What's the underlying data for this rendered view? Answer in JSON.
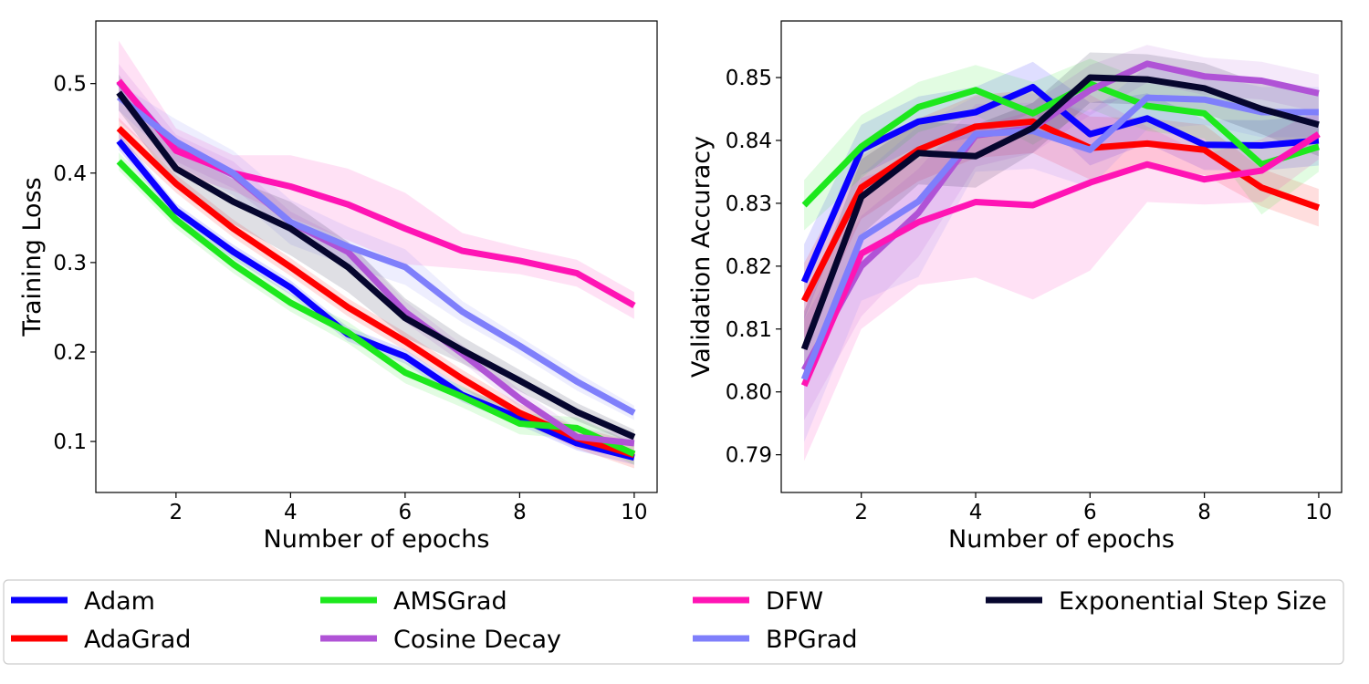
{
  "chart_data": [
    {
      "type": "line",
      "xlabel": "Number of epochs",
      "ylabel": "Training Loss",
      "x": [
        1,
        2,
        3,
        4,
        5,
        6,
        7,
        8,
        9,
        10
      ],
      "xlim": [
        0.6,
        10.4
      ],
      "ylim": [
        0.043,
        0.57
      ],
      "xticks": [
        2,
        4,
        6,
        8,
        10
      ],
      "yticks": [
        0.1,
        0.2,
        0.3,
        0.4,
        0.5
      ],
      "ytick_labels": [
        "0.1",
        "0.2",
        "0.3",
        "0.4",
        "0.5"
      ],
      "grid": false,
      "series": [
        {
          "name": "Adam",
          "values": [
            0.436,
            0.358,
            0.312,
            0.272,
            0.22,
            0.195,
            0.152,
            0.126,
            0.098,
            0.082
          ],
          "band": [
            0.01,
            0.008,
            0.008,
            0.008,
            0.008,
            0.008,
            0.008,
            0.008,
            0.008,
            0.008
          ]
        },
        {
          "name": "AdaGrad",
          "values": [
            0.45,
            0.388,
            0.338,
            0.295,
            0.25,
            0.212,
            0.17,
            0.132,
            0.104,
            0.085
          ],
          "band": [
            0.012,
            0.01,
            0.01,
            0.01,
            0.01,
            0.01,
            0.01,
            0.01,
            0.012,
            0.015
          ]
        },
        {
          "name": "AMSGrad",
          "values": [
            0.413,
            0.348,
            0.298,
            0.255,
            0.222,
            0.177,
            0.15,
            0.12,
            0.115,
            0.086
          ],
          "band": [
            0.01,
            0.01,
            0.01,
            0.01,
            0.012,
            0.012,
            0.012,
            0.012,
            0.012,
            0.012
          ]
        },
        {
          "name": "Cosine Decay",
          "values": [
            0.502,
            0.428,
            0.398,
            0.345,
            0.312,
            0.245,
            0.198,
            0.148,
            0.105,
            0.098
          ],
          "band": [
            0.02,
            0.015,
            0.015,
            0.012,
            0.012,
            0.012,
            0.01,
            0.01,
            0.01,
            0.01
          ]
        },
        {
          "name": "DFW",
          "values": [
            0.503,
            0.425,
            0.4,
            0.385,
            0.365,
            0.338,
            0.313,
            0.302,
            0.288,
            0.252
          ],
          "band": [
            0.045,
            0.025,
            0.02,
            0.035,
            0.04,
            0.04,
            0.02,
            0.015,
            0.015,
            0.015
          ]
        },
        {
          "name": "BPGrad",
          "values": [
            0.485,
            0.435,
            0.4,
            0.345,
            0.318,
            0.295,
            0.245,
            0.207,
            0.167,
            0.132
          ],
          "band": [
            0.015,
            0.025,
            0.025,
            0.025,
            0.022,
            0.02,
            0.012,
            0.01,
            0.01,
            0.008
          ]
        },
        {
          "name": "Exponential Step Size",
          "values": [
            0.49,
            0.405,
            0.368,
            0.338,
            0.295,
            0.238,
            0.202,
            0.168,
            0.133,
            0.105
          ],
          "band": [
            0.02,
            0.02,
            0.025,
            0.03,
            0.028,
            0.022,
            0.015,
            0.012,
            0.01,
            0.008
          ]
        }
      ]
    },
    {
      "type": "line",
      "xlabel": "Number of epochs",
      "ylabel": "Validation Accuracy",
      "x": [
        1,
        2,
        3,
        4,
        5,
        6,
        7,
        8,
        9,
        10
      ],
      "xlim": [
        0.6,
        10.4
      ],
      "ylim": [
        0.784,
        0.859
      ],
      "xticks": [
        2,
        4,
        6,
        8,
        10
      ],
      "yticks": [
        0.79,
        0.8,
        0.81,
        0.82,
        0.83,
        0.84,
        0.85
      ],
      "ytick_labels": [
        "0.79",
        "0.80",
        "0.81",
        "0.82",
        "0.83",
        "0.84",
        "0.85"
      ],
      "grid": false,
      "series": [
        {
          "name": "Adam",
          "values": [
            0.8175,
            0.8385,
            0.843,
            0.8445,
            0.8485,
            0.841,
            0.8435,
            0.8393,
            0.8392,
            0.84
          ],
          "band": [
            0.006,
            0.004,
            0.004,
            0.004,
            0.004,
            0.005,
            0.004,
            0.004,
            0.004,
            0.004
          ]
        },
        {
          "name": "AdaGrad",
          "values": [
            0.8145,
            0.8325,
            0.8385,
            0.8422,
            0.843,
            0.8388,
            0.8395,
            0.8385,
            0.8325,
            0.8293
          ],
          "band": [
            0.006,
            0.005,
            0.005,
            0.005,
            0.005,
            0.005,
            0.004,
            0.004,
            0.003,
            0.003
          ]
        },
        {
          "name": "AMSGrad",
          "values": [
            0.8297,
            0.839,
            0.8453,
            0.848,
            0.8443,
            0.849,
            0.8455,
            0.8443,
            0.8362,
            0.839
          ],
          "band": [
            0.004,
            0.005,
            0.004,
            0.004,
            0.005,
            0.004,
            0.004,
            0.004,
            0.008,
            0.004
          ]
        },
        {
          "name": "Cosine Decay",
          "values": [
            0.8035,
            0.82,
            0.8285,
            0.8408,
            0.842,
            0.848,
            0.8522,
            0.8502,
            0.8495,
            0.8475
          ],
          "band": [
            0.008,
            0.008,
            0.007,
            0.005,
            0.004,
            0.004,
            0.003,
            0.003,
            0.003,
            0.003
          ]
        },
        {
          "name": "DFW",
          "values": [
            0.801,
            0.822,
            0.827,
            0.8302,
            0.8297,
            0.8333,
            0.8362,
            0.8338,
            0.8352,
            0.841
          ],
          "band": [
            0.012,
            0.012,
            0.01,
            0.012,
            0.015,
            0.014,
            0.006,
            0.004,
            0.005,
            0.004
          ]
        },
        {
          "name": "BPGrad",
          "values": [
            0.802,
            0.8245,
            0.8303,
            0.841,
            0.8415,
            0.8385,
            0.8468,
            0.8465,
            0.8445,
            0.8445
          ],
          "band": [
            0.01,
            0.01,
            0.012,
            0.006,
            0.006,
            0.006,
            0.005,
            0.004,
            0.004,
            0.004
          ]
        },
        {
          "name": "Exponential Step Size",
          "values": [
            0.8068,
            0.831,
            0.838,
            0.8375,
            0.842,
            0.85,
            0.8497,
            0.8483,
            0.845,
            0.8425
          ],
          "band": [
            0.006,
            0.006,
            0.005,
            0.005,
            0.004,
            0.004,
            0.004,
            0.004,
            0.004,
            0.005
          ]
        }
      ]
    }
  ],
  "legend": {
    "placement": "bottom",
    "entries": [
      {
        "label": "Adam",
        "color": "#0a00ff"
      },
      {
        "label": "AMSGrad",
        "color": "#1de81d"
      },
      {
        "label": "DFW",
        "color": "#ff14b4"
      },
      {
        "label": "Exponential Step Size",
        "color": "#06062e"
      },
      {
        "label": "AdaGrad",
        "color": "#ff0000"
      },
      {
        "label": "Cosine Decay",
        "color": "#b053d6"
      },
      {
        "label": "BPGrad",
        "color": "#7f7ffb"
      }
    ]
  },
  "colors": {
    "Adam": "#0a00ff",
    "AdaGrad": "#ff0000",
    "AMSGrad": "#1de81d",
    "Cosine Decay": "#b053d6",
    "DFW": "#ff14b4",
    "BPGrad": "#7f7ffb",
    "Exponential Step Size": "#06062e"
  }
}
